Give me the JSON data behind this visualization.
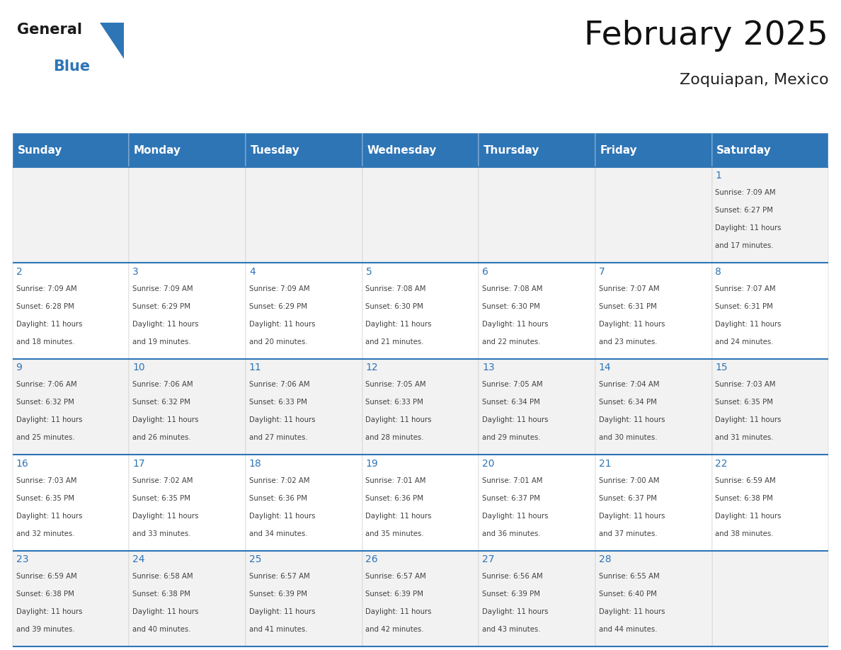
{
  "title": "February 2025",
  "subtitle": "Zoquiapan, Mexico",
  "header_bg": "#2e75b6",
  "header_text_color": "#ffffff",
  "days_of_week": [
    "Sunday",
    "Monday",
    "Tuesday",
    "Wednesday",
    "Thursday",
    "Friday",
    "Saturday"
  ],
  "cell_bg_odd": "#f2f2f2",
  "cell_bg_even": "#ffffff",
  "row_border_color": "#2e75b6",
  "cell_border_color": "#c0c0c0",
  "day_number_color": "#2e75b6",
  "info_text_color": "#404040",
  "logo_general_color": "#1a1a1a",
  "logo_blue_color": "#2e75b6",
  "calendar_data": [
    {
      "day": 1,
      "row": 0,
      "col": 6,
      "sunrise": "7:09 AM",
      "sunset": "6:27 PM",
      "daylight": "11 hours and 17 minutes"
    },
    {
      "day": 2,
      "row": 1,
      "col": 0,
      "sunrise": "7:09 AM",
      "sunset": "6:28 PM",
      "daylight": "11 hours and 18 minutes"
    },
    {
      "day": 3,
      "row": 1,
      "col": 1,
      "sunrise": "7:09 AM",
      "sunset": "6:29 PM",
      "daylight": "11 hours and 19 minutes"
    },
    {
      "day": 4,
      "row": 1,
      "col": 2,
      "sunrise": "7:09 AM",
      "sunset": "6:29 PM",
      "daylight": "11 hours and 20 minutes"
    },
    {
      "day": 5,
      "row": 1,
      "col": 3,
      "sunrise": "7:08 AM",
      "sunset": "6:30 PM",
      "daylight": "11 hours and 21 minutes"
    },
    {
      "day": 6,
      "row": 1,
      "col": 4,
      "sunrise": "7:08 AM",
      "sunset": "6:30 PM",
      "daylight": "11 hours and 22 minutes"
    },
    {
      "day": 7,
      "row": 1,
      "col": 5,
      "sunrise": "7:07 AM",
      "sunset": "6:31 PM",
      "daylight": "11 hours and 23 minutes"
    },
    {
      "day": 8,
      "row": 1,
      "col": 6,
      "sunrise": "7:07 AM",
      "sunset": "6:31 PM",
      "daylight": "11 hours and 24 minutes"
    },
    {
      "day": 9,
      "row": 2,
      "col": 0,
      "sunrise": "7:06 AM",
      "sunset": "6:32 PM",
      "daylight": "11 hours and 25 minutes"
    },
    {
      "day": 10,
      "row": 2,
      "col": 1,
      "sunrise": "7:06 AM",
      "sunset": "6:32 PM",
      "daylight": "11 hours and 26 minutes"
    },
    {
      "day": 11,
      "row": 2,
      "col": 2,
      "sunrise": "7:06 AM",
      "sunset": "6:33 PM",
      "daylight": "11 hours and 27 minutes"
    },
    {
      "day": 12,
      "row": 2,
      "col": 3,
      "sunrise": "7:05 AM",
      "sunset": "6:33 PM",
      "daylight": "11 hours and 28 minutes"
    },
    {
      "day": 13,
      "row": 2,
      "col": 4,
      "sunrise": "7:05 AM",
      "sunset": "6:34 PM",
      "daylight": "11 hours and 29 minutes"
    },
    {
      "day": 14,
      "row": 2,
      "col": 5,
      "sunrise": "7:04 AM",
      "sunset": "6:34 PM",
      "daylight": "11 hours and 30 minutes"
    },
    {
      "day": 15,
      "row": 2,
      "col": 6,
      "sunrise": "7:03 AM",
      "sunset": "6:35 PM",
      "daylight": "11 hours and 31 minutes"
    },
    {
      "day": 16,
      "row": 3,
      "col": 0,
      "sunrise": "7:03 AM",
      "sunset": "6:35 PM",
      "daylight": "11 hours and 32 minutes"
    },
    {
      "day": 17,
      "row": 3,
      "col": 1,
      "sunrise": "7:02 AM",
      "sunset": "6:35 PM",
      "daylight": "11 hours and 33 minutes"
    },
    {
      "day": 18,
      "row": 3,
      "col": 2,
      "sunrise": "7:02 AM",
      "sunset": "6:36 PM",
      "daylight": "11 hours and 34 minutes"
    },
    {
      "day": 19,
      "row": 3,
      "col": 3,
      "sunrise": "7:01 AM",
      "sunset": "6:36 PM",
      "daylight": "11 hours and 35 minutes"
    },
    {
      "day": 20,
      "row": 3,
      "col": 4,
      "sunrise": "7:01 AM",
      "sunset": "6:37 PM",
      "daylight": "11 hours and 36 minutes"
    },
    {
      "day": 21,
      "row": 3,
      "col": 5,
      "sunrise": "7:00 AM",
      "sunset": "6:37 PM",
      "daylight": "11 hours and 37 minutes"
    },
    {
      "day": 22,
      "row": 3,
      "col": 6,
      "sunrise": "6:59 AM",
      "sunset": "6:38 PM",
      "daylight": "11 hours and 38 minutes"
    },
    {
      "day": 23,
      "row": 4,
      "col": 0,
      "sunrise": "6:59 AM",
      "sunset": "6:38 PM",
      "daylight": "11 hours and 39 minutes"
    },
    {
      "day": 24,
      "row": 4,
      "col": 1,
      "sunrise": "6:58 AM",
      "sunset": "6:38 PM",
      "daylight": "11 hours and 40 minutes"
    },
    {
      "day": 25,
      "row": 4,
      "col": 2,
      "sunrise": "6:57 AM",
      "sunset": "6:39 PM",
      "daylight": "11 hours and 41 minutes"
    },
    {
      "day": 26,
      "row": 4,
      "col": 3,
      "sunrise": "6:57 AM",
      "sunset": "6:39 PM",
      "daylight": "11 hours and 42 minutes"
    },
    {
      "day": 27,
      "row": 4,
      "col": 4,
      "sunrise": "6:56 AM",
      "sunset": "6:39 PM",
      "daylight": "11 hours and 43 minutes"
    },
    {
      "day": 28,
      "row": 4,
      "col": 5,
      "sunrise": "6:55 AM",
      "sunset": "6:40 PM",
      "daylight": "11 hours and 44 minutes"
    }
  ]
}
